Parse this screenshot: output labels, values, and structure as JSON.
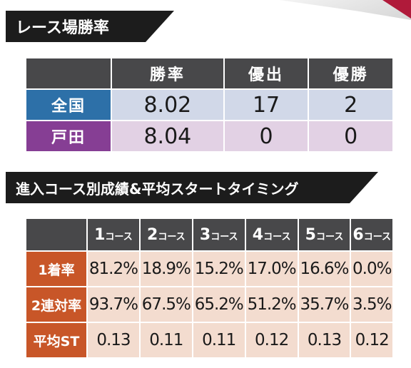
{
  "section1": {
    "title": "レース場勝率",
    "columns": [
      "勝率",
      "優出",
      "優勝"
    ],
    "rows": [
      {
        "label": "全国",
        "values": [
          "8.02",
          "17",
          "2"
        ]
      },
      {
        "label": "戸田",
        "values": [
          "8.04",
          "0",
          "0"
        ]
      }
    ]
  },
  "section2": {
    "title": "進入コース別成績&平均スタートタイミング",
    "columns": [
      {
        "num": "1",
        "suffix": "コース"
      },
      {
        "num": "2",
        "suffix": "コース"
      },
      {
        "num": "3",
        "suffix": "コース"
      },
      {
        "num": "4",
        "suffix": "コース"
      },
      {
        "num": "5",
        "suffix": "コース"
      },
      {
        "num": "6",
        "suffix": "コース"
      }
    ],
    "rows": [
      {
        "label": "1着率",
        "values": [
          "81.2%",
          "18.9%",
          "15.2%",
          "17.0%",
          "16.6%",
          "0.0%"
        ]
      },
      {
        "label": "2連対率",
        "values": [
          "93.7%",
          "67.5%",
          "65.2%",
          "51.2%",
          "35.7%",
          "3.5%"
        ]
      },
      {
        "label": "平均ST",
        "values": [
          "0.13",
          "0.11",
          "0.11",
          "0.12",
          "0.13",
          "0.12"
        ]
      }
    ]
  },
  "colors": {
    "header_bg": "#1c1c1c",
    "col_header_bg": "#48484a",
    "zenkoku_label": "#2d70a8",
    "zenkoku_cell": "#d1d8e8",
    "toda_label": "#863e94",
    "toda_cell": "#e2d1e4",
    "course_label": "#c85628",
    "course_cell": "#f3dccf"
  }
}
